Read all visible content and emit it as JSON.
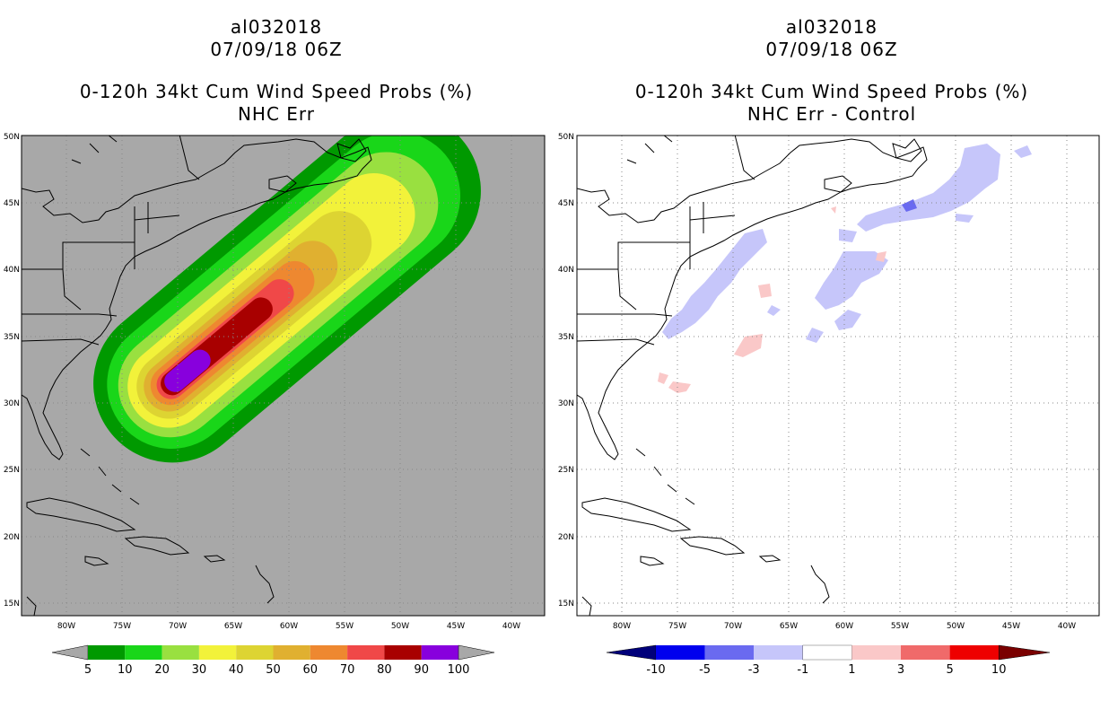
{
  "left_panel": {
    "title_storm": "al032018",
    "title_date": "07/09/18 06Z",
    "title_product": "0-120h 34kt Cum Wind Speed Probs (%)",
    "title_subtitle": "NHC Err",
    "colorbar_labels": [
      "5",
      "10",
      "20",
      "30",
      "40",
      "50",
      "60",
      "70",
      "80",
      "90",
      "100"
    ],
    "colors": {
      "background": "#a8a8a8",
      "c5": "#009900",
      "c10": "#19d619",
      "c20": "#99e040",
      "c30": "#f2f23a",
      "c40": "#ddd432",
      "c50": "#e0b030",
      "c60": "#ee8830",
      "c70": "#f04848",
      "c80": "#a80000",
      "c90": "#8800dd"
    }
  },
  "right_panel": {
    "title_storm": "al032018",
    "title_date": "07/09/18 06Z",
    "title_product": "0-120h 34kt Cum Wind Speed Probs (%)",
    "title_subtitle": "NHC Err - Control",
    "colorbar_labels": [
      "-10",
      "-5",
      "-3",
      "-1",
      "1",
      "3",
      "5",
      "10"
    ],
    "colors": {
      "neg_light": "#c6c6fa",
      "neg_mid": "#6a6af0",
      "neg_strong": "#0000ee",
      "pos_light": "#fac8c8",
      "pos_mid": "#f06a6a",
      "pos_strong": "#ee0000"
    }
  },
  "axes": {
    "lon_labels": [
      "80W",
      "75W",
      "70W",
      "65W",
      "60W",
      "55W",
      "50W",
      "45W",
      "40W"
    ],
    "lat_labels": [
      "50N",
      "45N",
      "40N",
      "35N",
      "30N",
      "25N",
      "20N",
      "15N"
    ]
  }
}
